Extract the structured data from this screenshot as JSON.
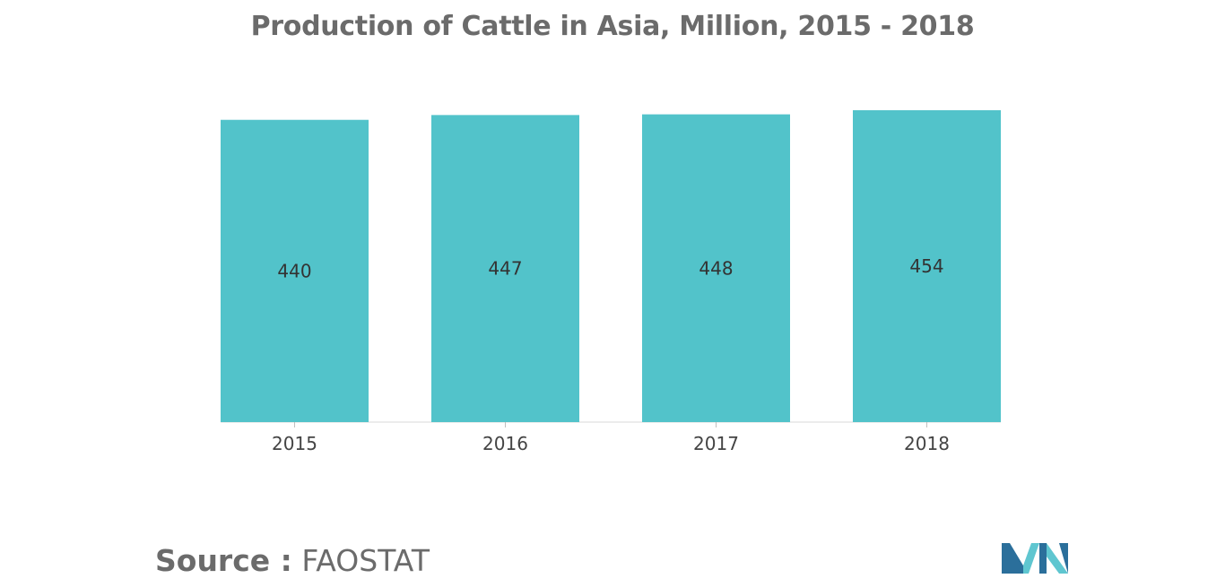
{
  "title": "Production of Cattle in Asia, Million, 2015 - 2018",
  "source": {
    "label": "Source :",
    "value": "FAOSTAT"
  },
  "colors": {
    "bar": "#52c3ca",
    "text": "#6b6b6b",
    "label": "#333333",
    "logo_dark": "#2b6f9b",
    "logo_light": "#5fc6d0"
  },
  "chart_data": {
    "type": "bar",
    "title": "Production of Cattle in Asia, Million, 2015 - 2018",
    "categories": [
      "2015",
      "2016",
      "2017",
      "2018"
    ],
    "values": [
      440,
      447,
      448,
      454
    ],
    "data_labels": [
      "440",
      "447",
      "448",
      "454"
    ],
    "xlabel": "",
    "ylabel": "",
    "ylim": [
      0,
      454
    ],
    "grid": false,
    "legend": "none"
  }
}
